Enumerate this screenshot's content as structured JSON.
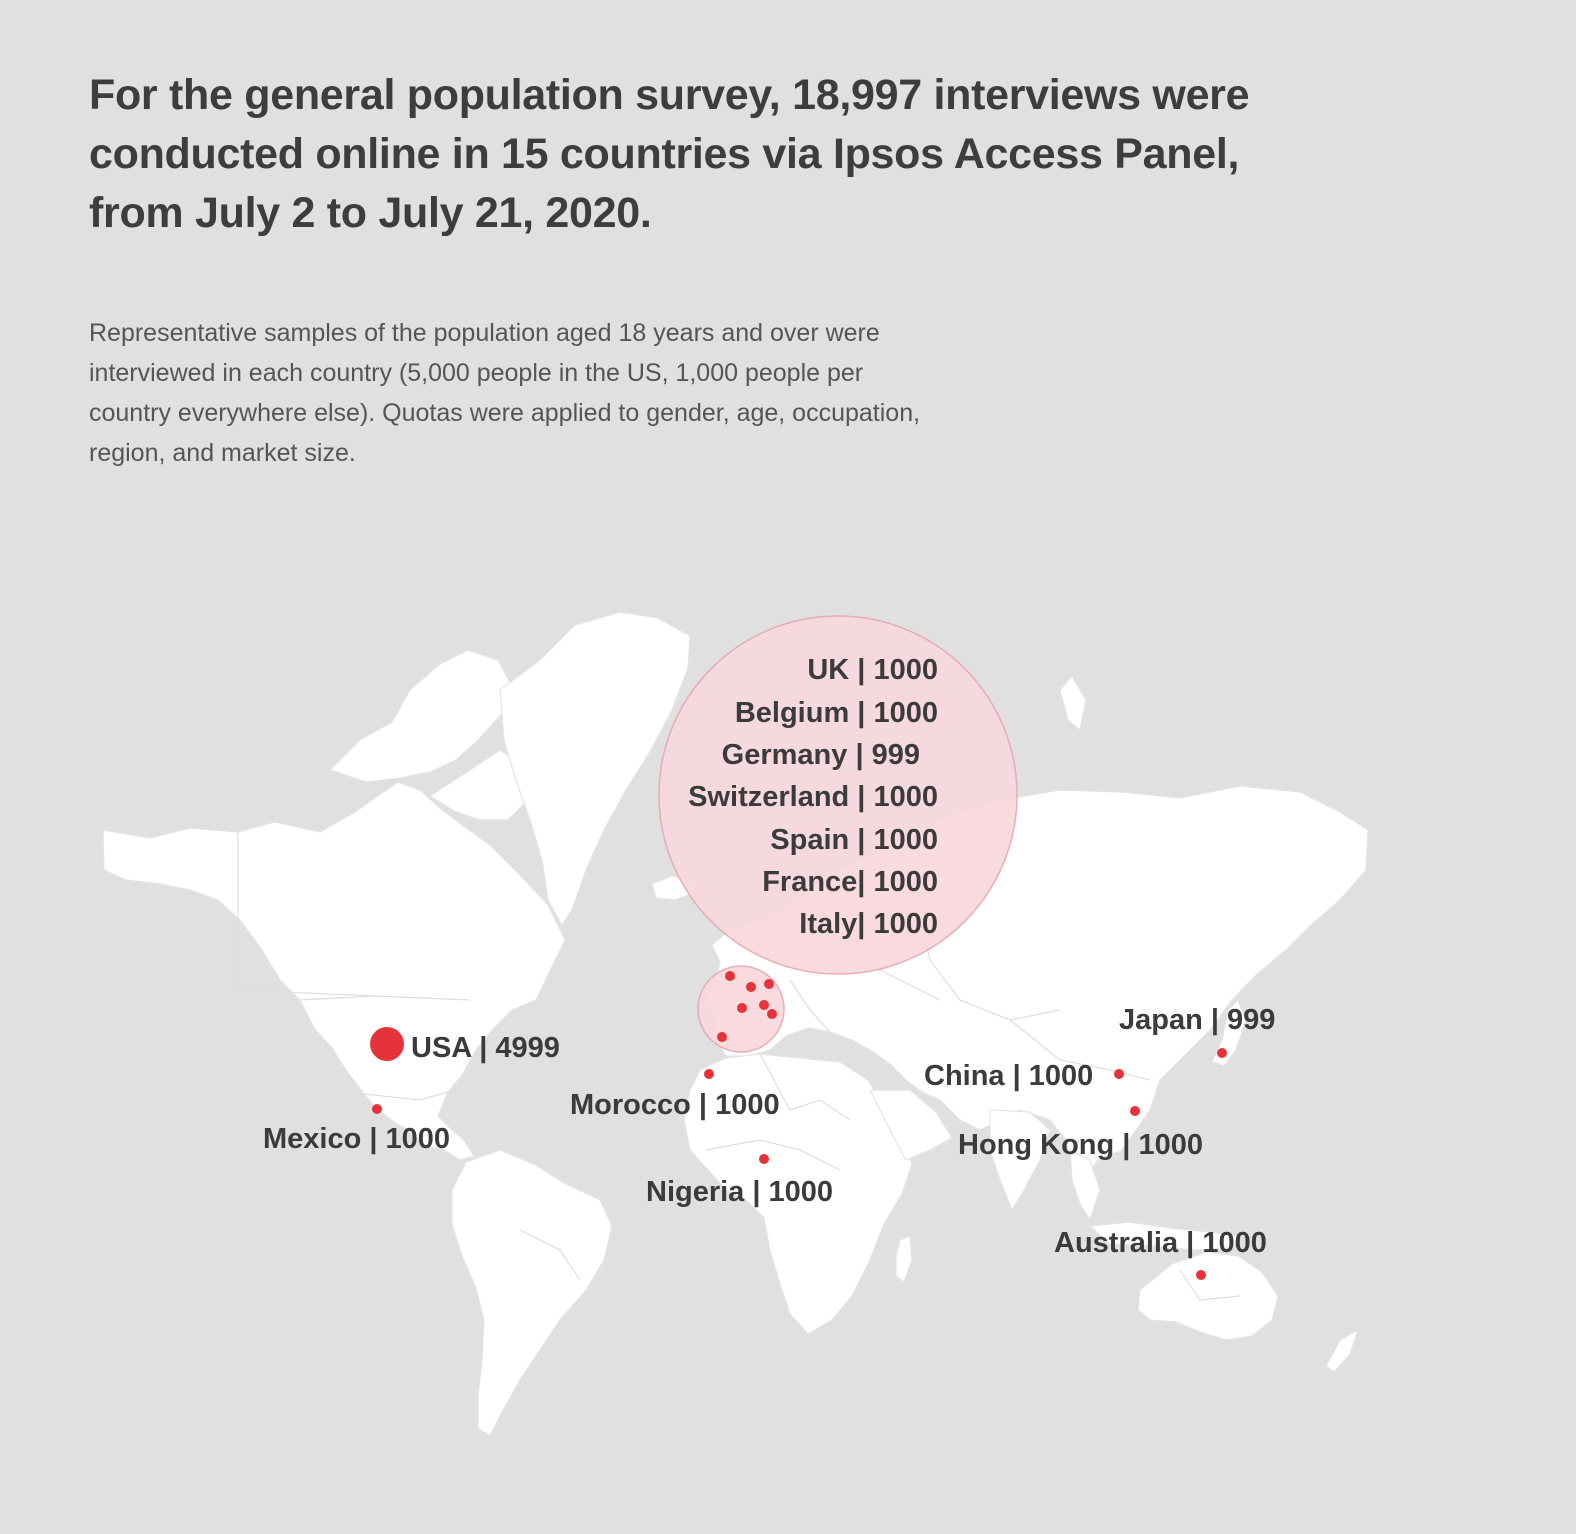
{
  "title_lines": [
    "For the general population survey, 18,997 interviews were",
    "conducted online in 15 countries via Ipsos Access Panel,",
    "from July 2 to July 21, 2020."
  ],
  "description_lines": [
    "Representative samples of the population aged 18 years and over were",
    "interviewed in each country (5,000 people in the US, 1,000 people per",
    "country everywhere else). Quotas were applied to gender, age, occupation,",
    "region, and market size."
  ],
  "colors": {
    "background": "#e0e0e0",
    "land": "#ffffff",
    "marker": "#e5323b",
    "europe_bubble": "#f8d9de",
    "europe_bubble_stroke": "#e7a9b4",
    "text": "#3b3b3b"
  },
  "chart_data": {
    "type": "map",
    "markers": [
      {
        "label": "USA | 4999",
        "value": 4999,
        "lon": -92,
        "lat": 38
      },
      {
        "label": "Mexico | 1000",
        "value": 1000,
        "lon": -100,
        "lat": 23
      },
      {
        "label": "Morocco | 1000",
        "value": 1000,
        "lon": -6,
        "lat": 32
      },
      {
        "label": "Nigeria | 1000",
        "value": 1000,
        "lon": 8,
        "lat": 9
      },
      {
        "label": "China | 1000",
        "value": 1000,
        "lon": 114,
        "lat": 30
      },
      {
        "label": "Hong Kong | 1000",
        "value": 1000,
        "lon": 114,
        "lat": 22
      },
      {
        "label": "Japan | 999",
        "value": 999,
        "lon": 139,
        "lat": 36
      },
      {
        "label": "Australia | 1000",
        "value": 1000,
        "lon": 134,
        "lat": -25
      }
    ],
    "europe_group": [
      {
        "label": "UK | 1000",
        "value": 1000,
        "lon": -2,
        "lat": 53
      },
      {
        "label": "Belgium | 1000",
        "value": 1000,
        "lon": 4,
        "lat": 50.8
      },
      {
        "label": "Germany | 999",
        "value": 999,
        "lon": 10,
        "lat": 51
      },
      {
        "label": "Switzerland | 1000",
        "value": 1000,
        "lon": 8,
        "lat": 47
      },
      {
        "label": "Spain | 1000",
        "value": 1000,
        "lon": -4,
        "lat": 40
      },
      {
        "label": "France| 1000",
        "value": 1000,
        "lon": 2,
        "lat": 47
      },
      {
        "label": "Italy| 1000",
        "value": 1000,
        "lon": 12,
        "lat": 43
      }
    ]
  }
}
